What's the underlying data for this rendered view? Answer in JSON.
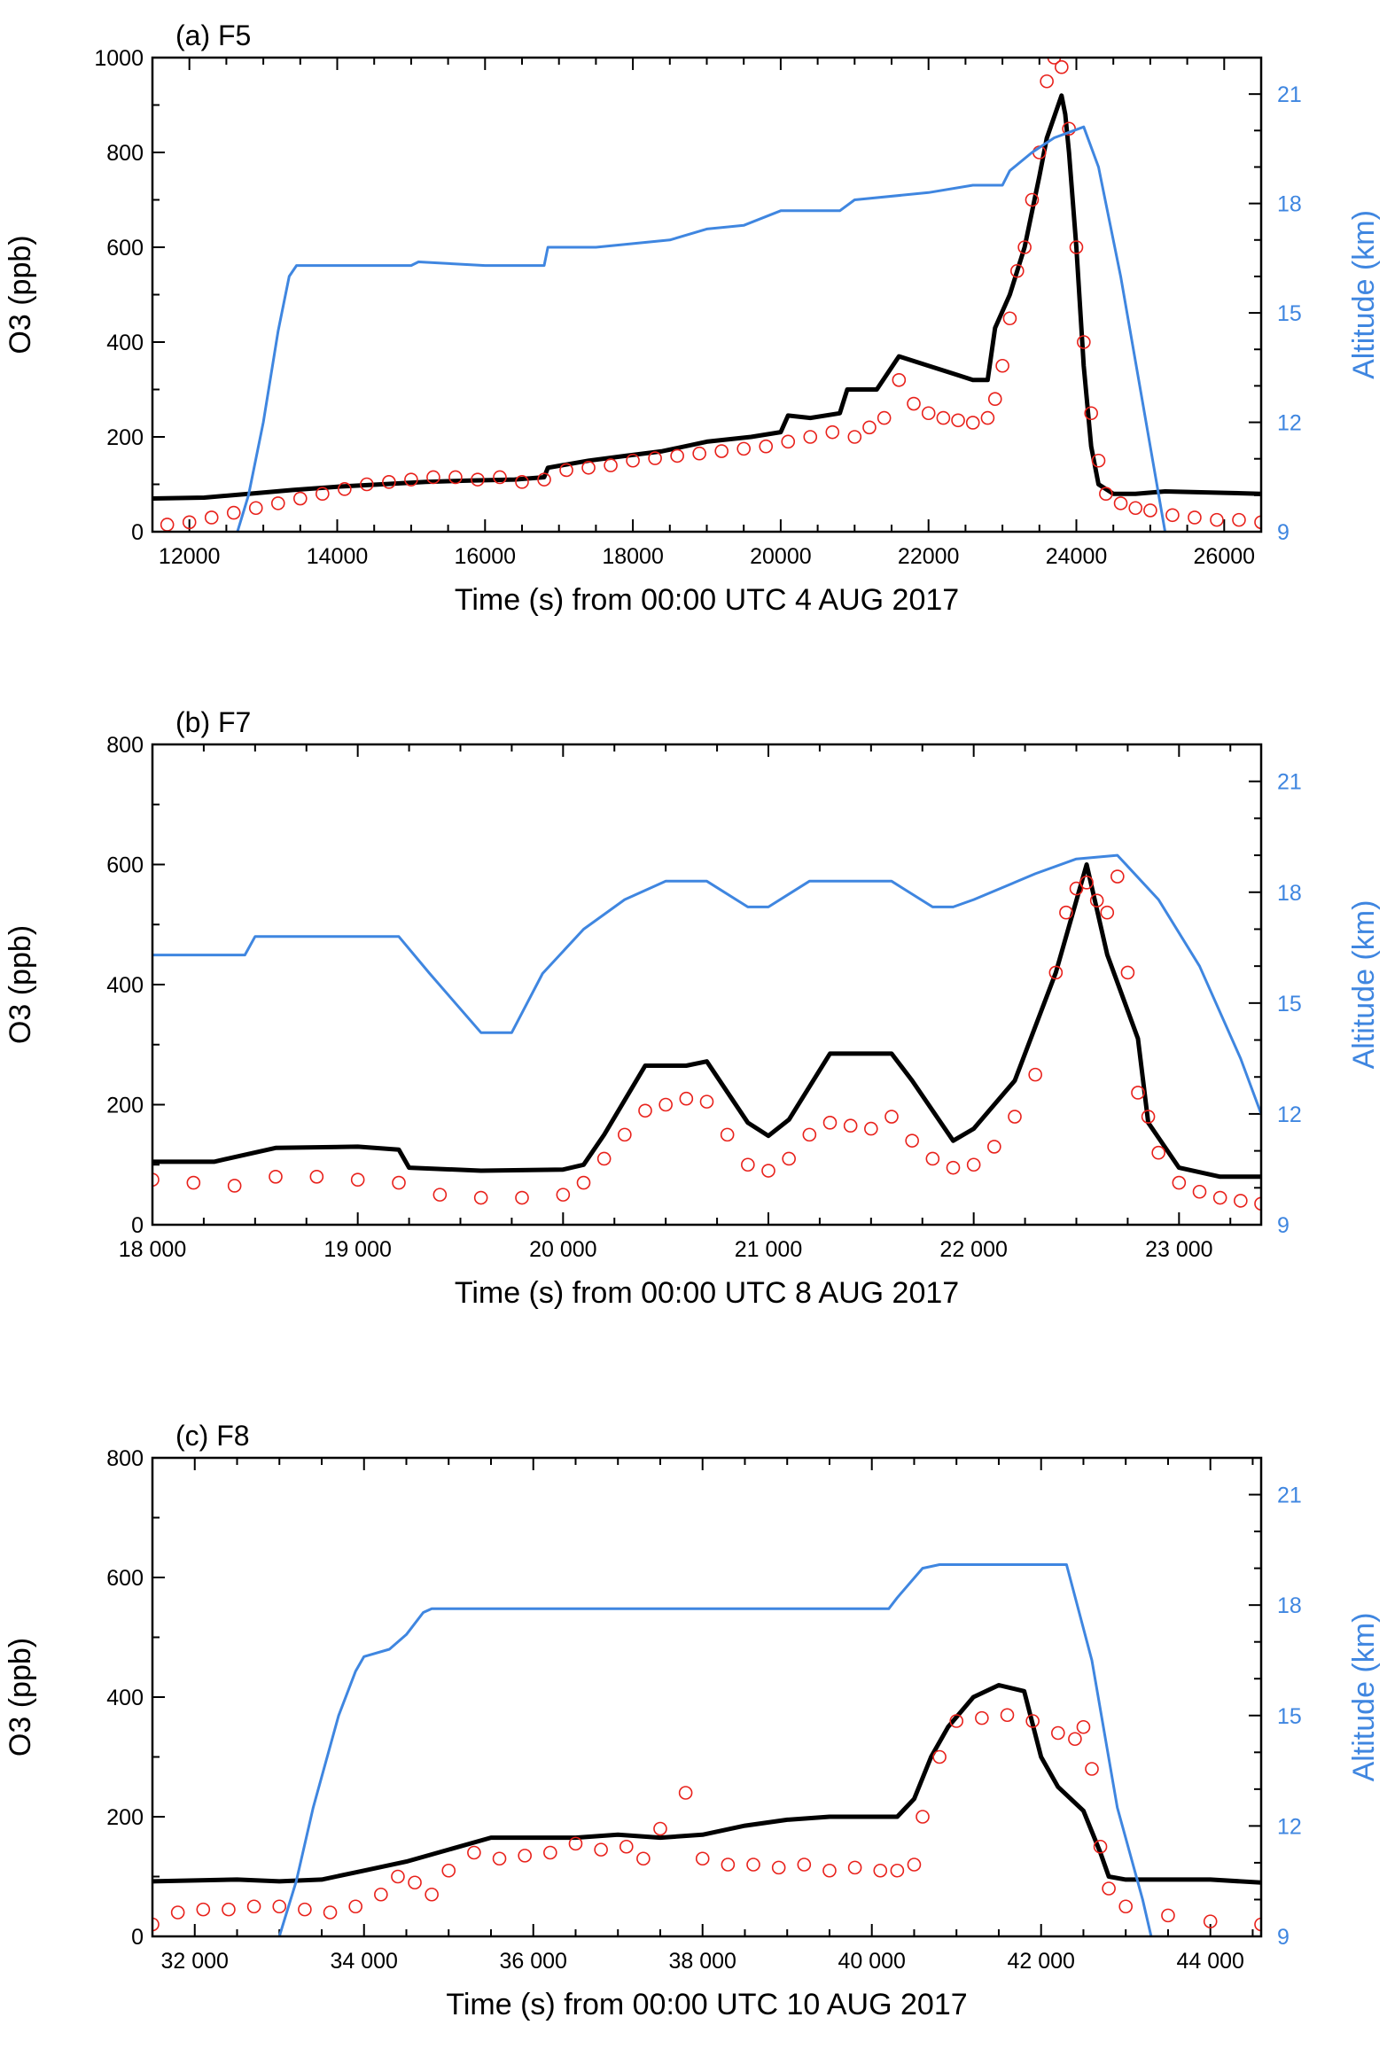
{
  "colors": {
    "model": "#000000",
    "observed": "#e8211b",
    "altitude": "#3f86e0"
  },
  "chart_data": [
    {
      "type": "line",
      "title": "(a) F5",
      "xlabel": "Time (s) from 00:00 UTC 4 AUG 2017",
      "ylabel": "O3 (ppb)",
      "y2label": "Altitude (km)",
      "xlim": [
        11500,
        26500
      ],
      "ylim": [
        0,
        1000
      ],
      "y2lim": [
        9,
        22
      ],
      "xticks": [
        12000,
        14000,
        16000,
        18000,
        20000,
        22000,
        24000,
        26000
      ],
      "xtick_labels": [
        "12000",
        "14000",
        "16000",
        "18000",
        "20000",
        "22000",
        "24000",
        "26000"
      ],
      "yticks": [
        0,
        200,
        400,
        600,
        800,
        1000
      ],
      "ytick_labels": [
        "0",
        "200",
        "400",
        "600",
        "800",
        "1000"
      ],
      "y2ticks": [
        9,
        12,
        15,
        18,
        21
      ],
      "y2tick_labels": [
        "9",
        "12",
        "15",
        "18",
        "21"
      ],
      "grid": false,
      "series": [
        {
          "role": "model",
          "axis": "left",
          "style": "line",
          "x": [
            11500,
            12200,
            12800,
            13400,
            14000,
            14600,
            15200,
            15800,
            16400,
            16800,
            16850,
            17400,
            17900,
            18400,
            19000,
            19600,
            20000,
            20100,
            20400,
            20800,
            20900,
            21300,
            21600,
            22000,
            22400,
            22600,
            22800,
            22900,
            23100,
            23300,
            23500,
            23600,
            23800,
            23850,
            23900,
            24000,
            24100,
            24200,
            24300,
            24500,
            24800,
            25200,
            26000,
            26500
          ],
          "y": [
            70,
            72,
            80,
            88,
            95,
            100,
            105,
            108,
            110,
            115,
            135,
            150,
            160,
            170,
            190,
            200,
            210,
            245,
            240,
            250,
            300,
            300,
            370,
            350,
            330,
            320,
            320,
            430,
            500,
            600,
            750,
            830,
            920,
            880,
            800,
            600,
            350,
            180,
            100,
            80,
            80,
            85,
            82,
            80
          ]
        },
        {
          "role": "observed",
          "axis": "left",
          "style": "circles",
          "x": [
            11700,
            12000,
            12300,
            12600,
            12900,
            13200,
            13500,
            13800,
            14100,
            14400,
            14700,
            15000,
            15300,
            15600,
            15900,
            16200,
            16500,
            16800,
            17100,
            17400,
            17700,
            18000,
            18300,
            18600,
            18900,
            19200,
            19500,
            19800,
            20100,
            20400,
            20700,
            21000,
            21200,
            21400,
            21600,
            21800,
            22000,
            22200,
            22400,
            22600,
            22800,
            22900,
            23000,
            23100,
            23200,
            23300,
            23400,
            23500,
            23600,
            23700,
            23800,
            23900,
            24000,
            24100,
            24200,
            24300,
            24400,
            24600,
            24800,
            25000,
            25300,
            25600,
            25900,
            26200,
            26500
          ],
          "y": [
            15,
            20,
            30,
            40,
            50,
            60,
            70,
            80,
            90,
            100,
            105,
            110,
            115,
            115,
            110,
            115,
            105,
            110,
            130,
            135,
            140,
            150,
            155,
            160,
            165,
            170,
            175,
            180,
            190,
            200,
            210,
            200,
            220,
            240,
            320,
            270,
            250,
            240,
            235,
            230,
            240,
            280,
            350,
            450,
            550,
            600,
            700,
            800,
            950,
            1000,
            980,
            850,
            600,
            400,
            250,
            150,
            80,
            60,
            50,
            45,
            35,
            30,
            25,
            25,
            20
          ]
        },
        {
          "role": "altitude",
          "axis": "right",
          "style": "line",
          "x": [
            12650,
            12800,
            13000,
            13200,
            13350,
            13450,
            14000,
            15000,
            15100,
            16000,
            16800,
            16850,
            17500,
            18000,
            18500,
            19000,
            19500,
            20000,
            20800,
            21000,
            22000,
            22600,
            23000,
            23100,
            23400,
            23700,
            24100,
            24300,
            24600,
            24900,
            25200
          ],
          "y": [
            9.0,
            10.0,
            12.0,
            14.5,
            16.0,
            16.3,
            16.3,
            16.3,
            16.4,
            16.3,
            16.3,
            16.8,
            16.8,
            16.9,
            17.0,
            17.3,
            17.4,
            17.8,
            17.8,
            18.1,
            18.3,
            18.5,
            18.5,
            18.9,
            19.4,
            19.8,
            20.1,
            19.0,
            16.0,
            12.5,
            9.0
          ]
        }
      ]
    },
    {
      "type": "line",
      "title": "(b) F7",
      "xlabel": "Time (s) from 00:00 UTC 8 AUG 2017",
      "ylabel": "O3 (ppb)",
      "y2label": "Altitude (km)",
      "xlim": [
        18000,
        23400
      ],
      "ylim": [
        0,
        800
      ],
      "y2lim": [
        9,
        22
      ],
      "xticks": [
        18000,
        19000,
        20000,
        21000,
        22000,
        23000
      ],
      "xtick_labels": [
        "18 000",
        "19 000",
        "20 000",
        "21 000",
        "22 000",
        "23 000"
      ],
      "yticks": [
        0,
        200,
        400,
        600,
        800
      ],
      "ytick_labels": [
        "0",
        "200",
        "400",
        "600",
        "800"
      ],
      "y2ticks": [
        9,
        12,
        15,
        18,
        21
      ],
      "y2tick_labels": [
        "9",
        "12",
        "15",
        "18",
        "21"
      ],
      "grid": false,
      "series": [
        {
          "role": "model",
          "axis": "left",
          "style": "line",
          "x": [
            18000,
            18300,
            18600,
            19000,
            19200,
            19250,
            19600,
            20000,
            20100,
            20200,
            20400,
            20600,
            20700,
            20900,
            21000,
            21100,
            21300,
            21600,
            21700,
            21900,
            22000,
            22200,
            22400,
            22550,
            22650,
            22800,
            22850,
            23000,
            23200,
            23400
          ],
          "y": [
            105,
            105,
            128,
            130,
            125,
            95,
            90,
            92,
            100,
            150,
            265,
            265,
            272,
            170,
            148,
            175,
            285,
            285,
            240,
            140,
            160,
            240,
            420,
            600,
            450,
            310,
            170,
            95,
            80,
            80
          ]
        },
        {
          "role": "observed",
          "axis": "left",
          "style": "circles",
          "x": [
            18000,
            18200,
            18400,
            18600,
            18800,
            19000,
            19200,
            19400,
            19600,
            19800,
            20000,
            20100,
            20200,
            20300,
            20400,
            20500,
            20600,
            20700,
            20800,
            20900,
            21000,
            21100,
            21200,
            21300,
            21400,
            21500,
            21600,
            21700,
            21800,
            21900,
            22000,
            22100,
            22200,
            22300,
            22400,
            22450,
            22500,
            22550,
            22600,
            22650,
            22700,
            22750,
            22800,
            22850,
            22900,
            23000,
            23100,
            23200,
            23300,
            23400
          ],
          "y": [
            75,
            70,
            65,
            80,
            80,
            75,
            70,
            50,
            45,
            45,
            50,
            70,
            110,
            150,
            190,
            200,
            210,
            205,
            150,
            100,
            90,
            110,
            150,
            170,
            165,
            160,
            180,
            140,
            110,
            95,
            100,
            130,
            180,
            250,
            420,
            520,
            560,
            570,
            540,
            520,
            580,
            420,
            220,
            180,
            120,
            70,
            55,
            45,
            40,
            35
          ]
        },
        {
          "role": "altitude",
          "axis": "right",
          "style": "line",
          "x": [
            18000,
            18450,
            18500,
            18800,
            19200,
            19350,
            19600,
            19750,
            19900,
            20100,
            20300,
            20500,
            20700,
            20900,
            21000,
            21200,
            21300,
            21600,
            21800,
            21900,
            22000,
            22300,
            22500,
            22700,
            22900,
            23100,
            23300,
            23400
          ],
          "y": [
            16.3,
            16.3,
            16.8,
            16.8,
            16.8,
            15.8,
            14.2,
            14.2,
            15.8,
            17.0,
            17.8,
            18.3,
            18.3,
            17.6,
            17.6,
            18.3,
            18.3,
            18.3,
            17.6,
            17.6,
            17.8,
            18.5,
            18.9,
            19.0,
            17.8,
            16.0,
            13.5,
            12.0
          ]
        }
      ]
    },
    {
      "type": "line",
      "title": "(c) F8",
      "xlabel": "Time (s) from 00:00 UTC 10 AUG 2017",
      "ylabel": "O3 (ppb)",
      "y2label": "Altitude (km)",
      "xlim": [
        31500,
        44600
      ],
      "ylim": [
        0,
        800
      ],
      "y2lim": [
        9,
        22
      ],
      "xticks": [
        32000,
        34000,
        36000,
        38000,
        40000,
        42000,
        44000
      ],
      "xtick_labels": [
        "32 000",
        "34 000",
        "36 000",
        "38 000",
        "40 000",
        "42 000",
        "44 000"
      ],
      "yticks": [
        0,
        200,
        400,
        600,
        800
      ],
      "ytick_labels": [
        "0",
        "200",
        "400",
        "600",
        "800"
      ],
      "y2ticks": [
        9,
        12,
        15,
        18,
        21
      ],
      "y2tick_labels": [
        "9",
        "12",
        "15",
        "18",
        "21"
      ],
      "grid": false,
      "series": [
        {
          "role": "model",
          "axis": "left",
          "style": "line",
          "x": [
            31500,
            32500,
            33000,
            33500,
            34000,
            34500,
            35000,
            35500,
            36000,
            36500,
            37000,
            37500,
            38000,
            38500,
            39000,
            39500,
            40000,
            40300,
            40500,
            40700,
            40900,
            41200,
            41500,
            41800,
            42000,
            42200,
            42500,
            42700,
            42800,
            43000,
            44000,
            44600
          ],
          "y": [
            92,
            95,
            92,
            95,
            110,
            125,
            145,
            165,
            165,
            165,
            170,
            165,
            170,
            185,
            195,
            200,
            200,
            200,
            230,
            300,
            350,
            400,
            420,
            410,
            300,
            250,
            210,
            140,
            100,
            95,
            95,
            90
          ]
        },
        {
          "role": "observed",
          "axis": "left",
          "style": "circles",
          "x": [
            31500,
            31800,
            32100,
            32400,
            32700,
            33000,
            33300,
            33600,
            33900,
            34200,
            34400,
            34600,
            34800,
            35000,
            35300,
            35600,
            35900,
            36200,
            36500,
            36800,
            37100,
            37300,
            37500,
            37800,
            38000,
            38300,
            38600,
            38900,
            39200,
            39500,
            39800,
            40100,
            40300,
            40500,
            40600,
            40800,
            41000,
            41300,
            41600,
            41900,
            42200,
            42400,
            42500,
            42600,
            42700,
            42800,
            43000,
            43500,
            44000,
            44600
          ],
          "y": [
            20,
            40,
            45,
            45,
            50,
            50,
            45,
            40,
            50,
            70,
            100,
            90,
            70,
            110,
            140,
            130,
            135,
            140,
            155,
            145,
            150,
            130,
            180,
            240,
            130,
            120,
            120,
            115,
            120,
            110,
            115,
            110,
            110,
            120,
            200,
            300,
            360,
            365,
            370,
            360,
            340,
            330,
            350,
            280,
            150,
            80,
            50,
            35,
            25,
            20
          ]
        },
        {
          "role": "altitude",
          "axis": "right",
          "style": "line",
          "x": [
            33000,
            33200,
            33400,
            33700,
            33900,
            34000,
            34300,
            34500,
            34700,
            34800,
            35500,
            36500,
            37500,
            38500,
            39500,
            40200,
            40300,
            40600,
            40800,
            41500,
            42300,
            42600,
            42900,
            43200,
            43300
          ],
          "y": [
            9.0,
            10.5,
            12.5,
            15.0,
            16.2,
            16.6,
            16.8,
            17.2,
            17.8,
            17.9,
            17.9,
            17.9,
            17.9,
            17.9,
            17.9,
            17.9,
            18.2,
            19.0,
            19.1,
            19.1,
            19.1,
            16.5,
            12.5,
            10.0,
            9.0
          ]
        }
      ]
    }
  ]
}
